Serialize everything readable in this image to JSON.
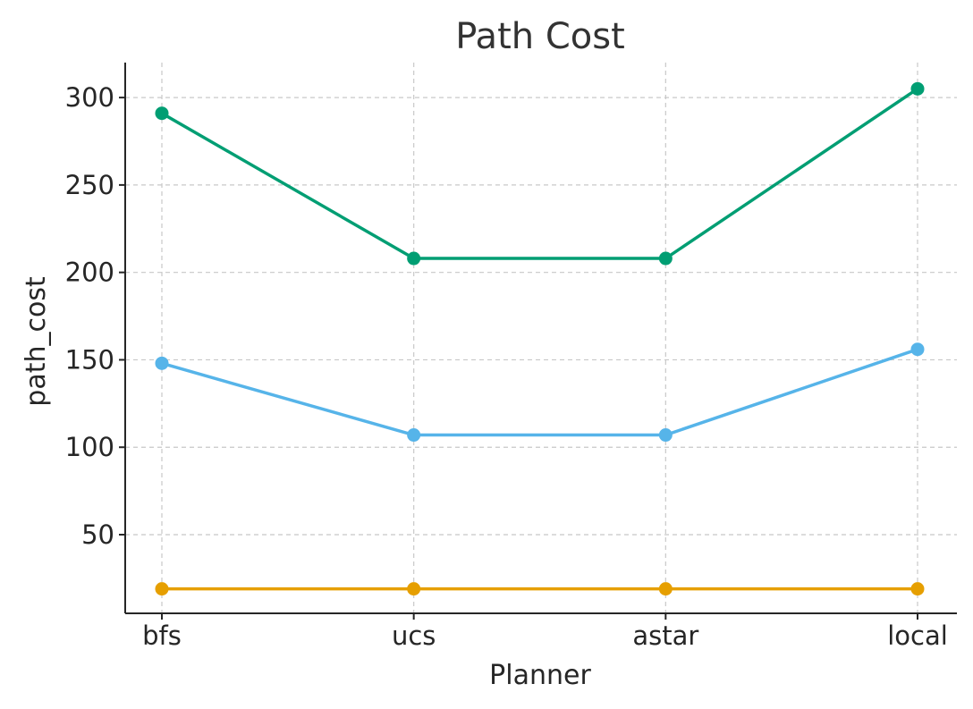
{
  "chart_data": {
    "type": "line",
    "title": "Path Cost",
    "xlabel": "Planner",
    "ylabel": "path_cost",
    "categories": [
      "bfs",
      "ucs",
      "astar",
      "local"
    ],
    "ylim": [
      5,
      320
    ],
    "yticks": [
      50,
      100,
      150,
      200,
      250,
      300
    ],
    "grid": true,
    "series": [
      {
        "color": "#009e73",
        "values": [
          291,
          208,
          208,
          305
        ]
      },
      {
        "color": "#56b4e9",
        "values": [
          148,
          107,
          107,
          156
        ]
      },
      {
        "color": "#e69f00",
        "values": [
          19,
          19,
          19,
          19
        ]
      }
    ]
  }
}
